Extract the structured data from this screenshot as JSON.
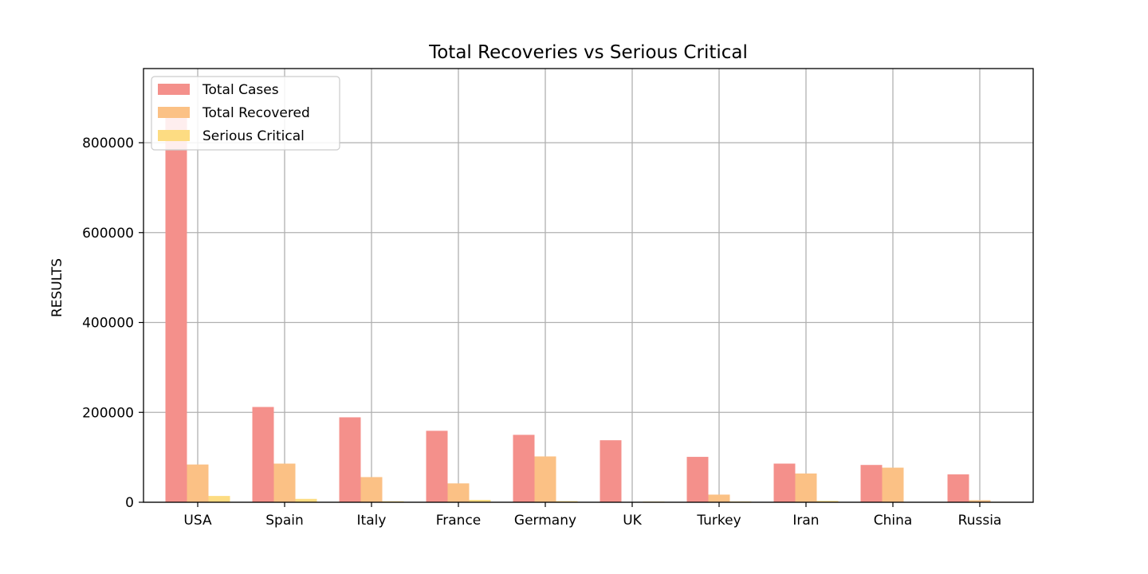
{
  "chart_data": {
    "type": "bar",
    "title": "Total Recoveries vs Serious Critical",
    "xlabel": "",
    "ylabel": "RESULTS",
    "categories": [
      "USA",
      "Spain",
      "Italy",
      "France",
      "Germany",
      "UK",
      "Turkey",
      "Iran",
      "China",
      "Russia"
    ],
    "series": [
      {
        "name": "Total Cases",
        "color": "#f4908b",
        "values": [
          862000,
          212000,
          189000,
          159000,
          150000,
          138000,
          101000,
          86000,
          83000,
          62000
        ]
      },
      {
        "name": "Total Recovered",
        "color": "#fbc185",
        "values": [
          84000,
          86000,
          56000,
          42000,
          102000,
          0,
          17000,
          64000,
          77000,
          4500
        ]
      },
      {
        "name": "Serious Critical",
        "color": "#fddc82",
        "values": [
          14000,
          7500,
          2200,
          5200,
          2500,
          1500,
          1800,
          3000,
          500,
          1000
        ]
      }
    ],
    "yticks": [
      "0",
      "200000",
      "400000",
      "600000",
      "800000"
    ],
    "ylim": [
      0,
      965000
    ],
    "grid": true,
    "legend": "top-left"
  }
}
